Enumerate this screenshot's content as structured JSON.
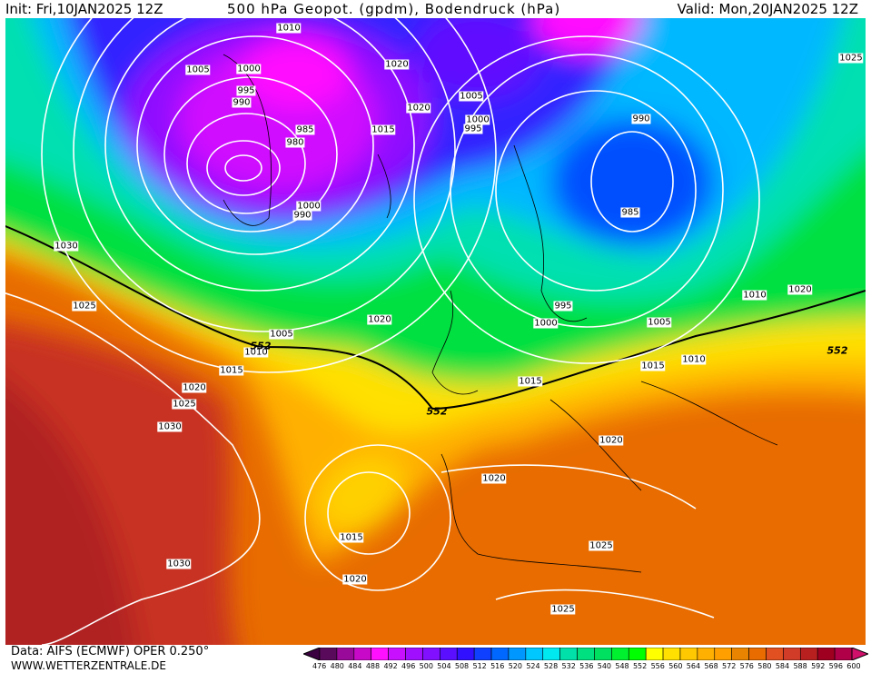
{
  "header": {
    "init": "Init: Fri,10JAN2025 12Z",
    "title": "500 hPa Geopot. (gpdm), Bodendruck (hPa)",
    "valid": "Valid: Mon,20JAN2025 12Z"
  },
  "footer": {
    "data_source": "Data: AIFS (ECMWF) OPER 0.250°",
    "website": "WWW.WETTERZENTRALE.DE"
  },
  "colorbar": {
    "ticks": [
      "476",
      "480",
      "484",
      "488",
      "492",
      "496",
      "500",
      "504",
      "508",
      "512",
      "516",
      "520",
      "524",
      "528",
      "532",
      "536",
      "540",
      "548",
      "552",
      "556",
      "560",
      "564",
      "568",
      "572",
      "576",
      "580",
      "584",
      "588",
      "592",
      "596",
      "600"
    ],
    "colors": [
      "#5a0a5a",
      "#9a0a9a",
      "#c80ac8",
      "#ff10ff",
      "#c810ff",
      "#a010ff",
      "#8010ff",
      "#5a10ff",
      "#3010ff",
      "#1040ff",
      "#0068ff",
      "#0098ff",
      "#00c8ff",
      "#00e8f0",
      "#00e0a8",
      "#00e080",
      "#00e060",
      "#00f030",
      "#00ff00",
      "#ffff00",
      "#ffe000",
      "#ffc800",
      "#ffb000",
      "#ffa000",
      "#e88400",
      "#e86c00",
      "#e05020",
      "#d03c28",
      "#b82020",
      "#a00020",
      "#b00048"
    ],
    "low_end_color": "#3a0040",
    "high_end_color": "#d0106a"
  },
  "map": {
    "pressure_labels": [
      "1010",
      "1005",
      "1000",
      "995",
      "990",
      "985",
      "980",
      "1000",
      "990",
      "1020",
      "1020",
      "1015",
      "1005",
      "1000",
      "995",
      "990",
      "985",
      "1025",
      "1030",
      "1025",
      "1005",
      "1010",
      "1015",
      "1020",
      "1020",
      "1025",
      "1030",
      "995",
      "1000",
      "1005",
      "1010",
      "1020",
      "1010",
      "1015",
      "1015",
      "1020",
      "1020",
      "1015",
      "1020",
      "1030",
      "1025",
      "1025"
    ],
    "geopot_labels": [
      "552",
      "552",
      "552"
    ]
  }
}
